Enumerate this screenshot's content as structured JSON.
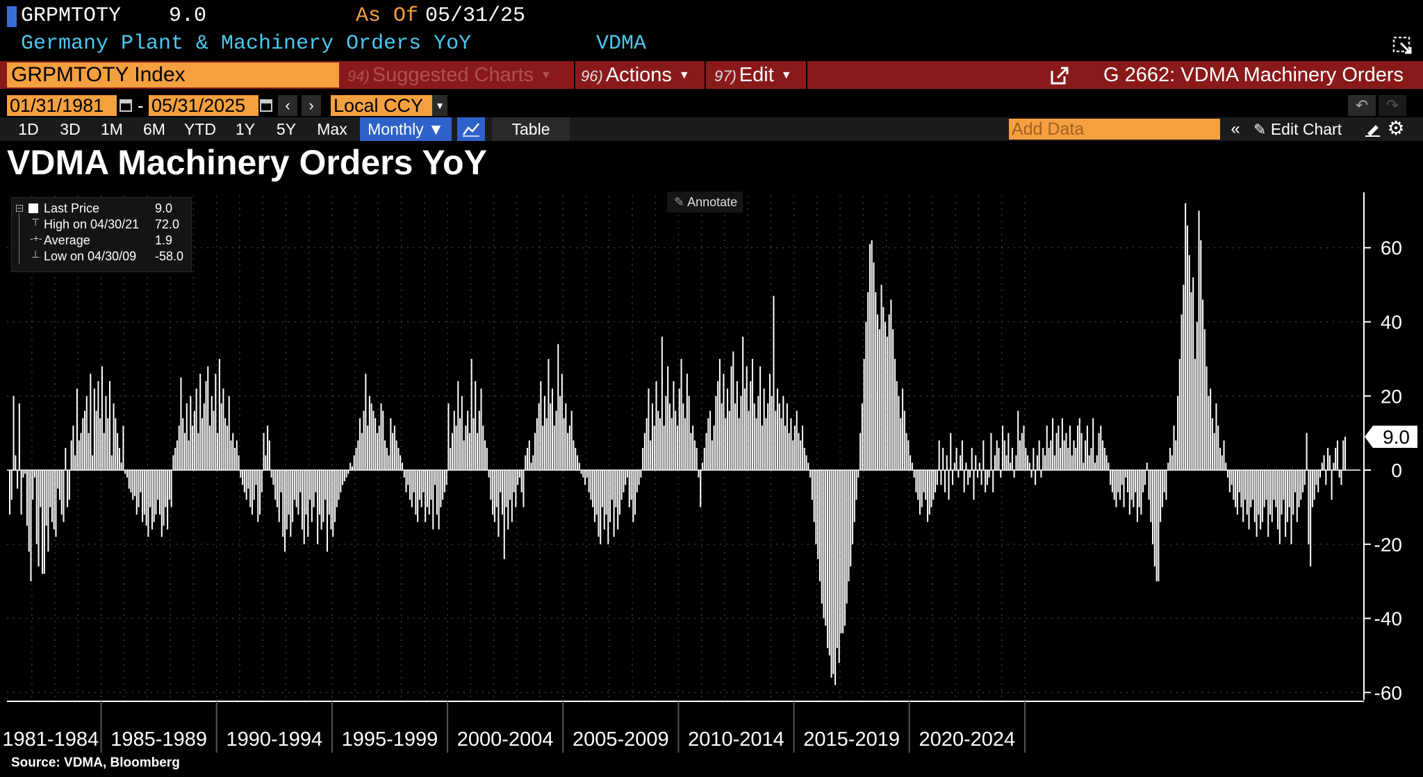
{
  "header": {
    "ticker": "GRPMTOTY",
    "last_value": "9.0",
    "as_of_label": "As Of",
    "as_of_date": "05/31/25",
    "description": "Germany Plant & Machinery Orders YoY",
    "source_short": "VDMA"
  },
  "command_bar": {
    "input_value": "GRPMTOTY Index",
    "suggested_num": "94)",
    "suggested_label": "Suggested Charts",
    "actions_num": "96)",
    "actions_label": "Actions",
    "edit_num": "97)",
    "edit_label": "Edit",
    "page_title": "G 2662: VDMA Machinery Orders"
  },
  "date_range": {
    "start": "01/31/1981",
    "separator": "-",
    "end": "05/31/2025",
    "currency": "Local CCY"
  },
  "toolbar": {
    "periods": [
      "1D",
      "3D",
      "1M",
      "6M",
      "YTD",
      "1Y",
      "5Y",
      "Max"
    ],
    "frequency": "Monthly ▼",
    "table_label": "Table",
    "add_data_placeholder": "Add Data",
    "edit_chart_label": "Edit Chart"
  },
  "annotate_label": "Annotate",
  "legend": {
    "rows": [
      {
        "label": "Last Price",
        "value": "9.0"
      },
      {
        "label": "High on 04/30/21",
        "value": "72.0"
      },
      {
        "label": "Average",
        "value": "1.9"
      },
      {
        "label": "Low on 04/30/09",
        "value": "-58.0"
      }
    ]
  },
  "last_price_tag": "9.0",
  "footer": "Source: VDMA, Bloomberg",
  "colors": {
    "background": "#000000",
    "bar": "#ffffff",
    "accent_orange": "#f5a040",
    "header_blue": "#4cc8f0",
    "command_bar_red": "#8a1a1a",
    "selected_blue": "#2f62c9"
  },
  "chart_data": {
    "type": "bar",
    "title": "VDMA Machinery Orders YoY",
    "xlabel": "",
    "ylabel": "",
    "y_ticks": [
      60,
      40,
      20,
      0,
      -20,
      -40,
      -60
    ],
    "ylim": [
      -62,
      74
    ],
    "x_period_labels": [
      "1981-1984",
      "1985-1989",
      "1990-1994",
      "1995-1999",
      "2000-2004",
      "2005-2009",
      "2010-2014",
      "2015-2019",
      "2020-2024"
    ],
    "x_start": "1981-01",
    "frequency": "monthly",
    "grid": true,
    "y_axis_position": "right",
    "series": [
      {
        "values": [
          -12,
          -8,
          20,
          4,
          -5,
          18,
          -12,
          -2,
          -1,
          -15,
          -22,
          -30,
          -8,
          -2,
          -20,
          -26,
          -10,
          -28,
          -28,
          -15,
          -22,
          -10,
          -14,
          -16,
          -18,
          -5,
          -8,
          -12,
          -14,
          6,
          -10,
          -8,
          8,
          12,
          4,
          22,
          8,
          10,
          14,
          16,
          20,
          10,
          26,
          4,
          22,
          16,
          24,
          14,
          28,
          10,
          20,
          14,
          24,
          4,
          18,
          14,
          10,
          6,
          2,
          12,
          -1,
          -2,
          -5,
          -6,
          -8,
          -7,
          -12,
          -10,
          -6,
          -14,
          -12,
          -15,
          -18,
          -10,
          -16,
          -14,
          -12,
          -8,
          -12,
          -18,
          -15,
          -10,
          -16,
          -8,
          -10,
          4,
          6,
          8,
          12,
          25,
          14,
          10,
          18,
          8,
          20,
          12,
          16,
          22,
          10,
          26,
          14,
          18,
          24,
          28,
          12,
          20,
          16,
          26,
          10,
          30,
          18,
          22,
          14,
          12,
          20,
          8,
          10,
          6,
          8,
          4,
          -2,
          -4,
          -6,
          -8,
          -5,
          -10,
          -12,
          -8,
          -4,
          -14,
          -12,
          -6,
          10,
          4,
          12,
          8,
          -2,
          -4,
          -8,
          -10,
          -14,
          -6,
          -18,
          -22,
          -16,
          -12,
          -18,
          -14,
          -8,
          -10,
          -12,
          -6,
          -16,
          -20,
          -12,
          -18,
          -8,
          -14,
          -10,
          -6,
          -20,
          -12,
          -16,
          -14,
          -8,
          -22,
          -12,
          -16,
          -18,
          -14,
          -10,
          -8,
          -6,
          -4,
          -3,
          -2,
          -1,
          2,
          1,
          4,
          6,
          8,
          14,
          10,
          16,
          26,
          12,
          20,
          18,
          16,
          14,
          10,
          12,
          18,
          16,
          8,
          6,
          4,
          14,
          10,
          12,
          8,
          6,
          4,
          2,
          -2,
          -6,
          -4,
          -8,
          -10,
          -6,
          -12,
          -14,
          -8,
          -10,
          -6,
          -14,
          -10,
          -12,
          -8,
          -16,
          -4,
          -12,
          -16,
          -10,
          -8,
          -6,
          -4,
          18,
          6,
          10,
          16,
          12,
          24,
          14,
          20,
          8,
          12,
          16,
          10,
          30,
          14,
          24,
          10,
          16,
          22,
          12,
          8,
          6,
          -2,
          -8,
          -12,
          -14,
          -10,
          -18,
          -6,
          -12,
          -24,
          -10,
          -16,
          -8,
          -14,
          -6,
          -10,
          -4,
          -2,
          -6,
          -10,
          4,
          6,
          8,
          2,
          4,
          10,
          14,
          18,
          24,
          12,
          20,
          14,
          30,
          18,
          22,
          12,
          16,
          34,
          20,
          26,
          14,
          18,
          10,
          12,
          16,
          8,
          6,
          4,
          2,
          -1,
          -2,
          -4,
          -2,
          -6,
          -8,
          -10,
          -14,
          -12,
          -18,
          -20,
          -10,
          -16,
          -12,
          -20,
          -14,
          -8,
          -18,
          -10,
          -16,
          -12,
          -8,
          -6,
          -4,
          -2,
          -10,
          -8,
          -14,
          -12,
          -6,
          -4,
          -2,
          6,
          10,
          14,
          22,
          8,
          18,
          12,
          24,
          16,
          14,
          36,
          12,
          20,
          28,
          18,
          14,
          24,
          16,
          12,
          22,
          30,
          18,
          14,
          26,
          20,
          10,
          12,
          8,
          6,
          -2,
          -10,
          2,
          6,
          10,
          14,
          16,
          8,
          12,
          20,
          24,
          30,
          18,
          26,
          14,
          22,
          16,
          28,
          32,
          18,
          24,
          14,
          20,
          36,
          22,
          28,
          16,
          24,
          30,
          18,
          14,
          20,
          28,
          12,
          22,
          14,
          18,
          26,
          20,
          47,
          16,
          22,
          18,
          14,
          20,
          12,
          18,
          10,
          14,
          8,
          12,
          16,
          10,
          8,
          12,
          6,
          4,
          2,
          -2,
          -8,
          -14,
          -20,
          -24,
          -30,
          -36,
          -40,
          -42,
          -48,
          -50,
          -56,
          -55,
          -58,
          -48,
          -52,
          -44,
          -44,
          -42,
          -36,
          -30,
          -26,
          -20,
          -14,
          -8,
          -2,
          10,
          18,
          30,
          40,
          48,
          61,
          62,
          56,
          48,
          42,
          38,
          50,
          44,
          40,
          36,
          42,
          46,
          38,
          30,
          24,
          20,
          14,
          22,
          16,
          10,
          8,
          4,
          2,
          -2,
          -6,
          -8,
          -12,
          -10,
          -6,
          -8,
          -14,
          -12,
          -10,
          -8,
          -6,
          -4,
          8,
          -4,
          6,
          -6,
          4,
          -8,
          10,
          -4,
          2,
          6,
          -2,
          4,
          8,
          -6,
          2,
          -4,
          -2,
          6,
          -8,
          4,
          -2,
          2,
          -4,
          8,
          -6,
          -4,
          -2,
          10,
          -6,
          4,
          8,
          6,
          -2,
          12,
          8,
          4,
          10,
          2,
          6,
          -2,
          4,
          16,
          8,
          10,
          12,
          6,
          4,
          2,
          -2,
          6,
          -4,
          4,
          8,
          -2,
          6,
          4,
          12,
          6,
          8,
          14,
          4,
          10,
          12,
          6,
          14,
          8,
          10,
          6,
          12,
          4,
          8,
          6,
          12,
          14,
          10,
          2,
          8,
          12,
          4,
          6,
          14,
          2,
          4,
          10,
          12,
          8,
          6,
          4,
          2,
          -4,
          -6,
          -8,
          -10,
          -6,
          -8,
          -4,
          -10,
          -2,
          -6,
          -12,
          -8,
          -10,
          -6,
          -14,
          -10,
          -12,
          -6,
          -4,
          2,
          -8,
          -14,
          -20,
          -26,
          -30,
          -30,
          -14,
          -10,
          -6,
          -8,
          2,
          6,
          4,
          12,
          8,
          20,
          30,
          42,
          50,
          72,
          66,
          58,
          48,
          52,
          30,
          40,
          70,
          62,
          46,
          38,
          28,
          20,
          22,
          14,
          10,
          18,
          12,
          6,
          4,
          8,
          2,
          -2,
          -6,
          -4,
          -8,
          -10,
          -12,
          -6,
          -10,
          -14,
          -8,
          -12,
          -16,
          -10,
          -8,
          -14,
          -18,
          -12,
          -16,
          -14,
          -10,
          -8,
          -18,
          -12,
          -14,
          -8,
          -10,
          -16,
          -20,
          -12,
          -8,
          -18,
          -14,
          -10,
          -20,
          -12,
          -6,
          -14,
          -10,
          -8,
          -6,
          -4,
          10,
          -20,
          -26,
          -10,
          -8,
          -4,
          -6,
          -2,
          2,
          4,
          -4,
          6,
          4,
          -8,
          2,
          6,
          8,
          -2,
          -4,
          8,
          9
        ]
      }
    ]
  }
}
